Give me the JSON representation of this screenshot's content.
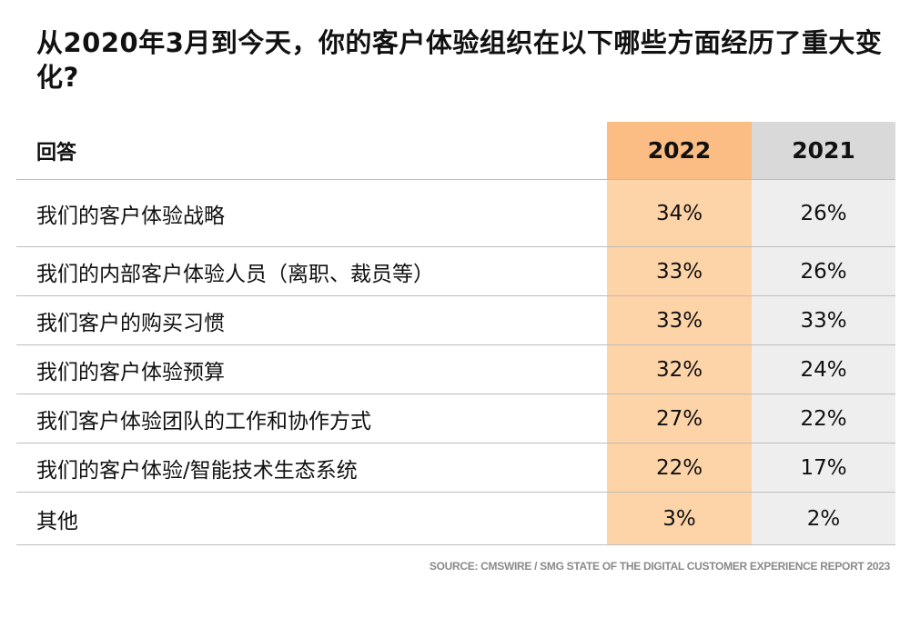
{
  "title": "从2020年3月到今天，你的客户体验组织在以下哪些方面经历了重大变化?",
  "colors": {
    "year_a_header": "#fbbd84",
    "year_a_cells": "#fdd3a8",
    "year_b_header": "#d9d9d9",
    "year_b_cells": "#eeeeee",
    "grid_lines": "#bdbdbd",
    "source_text": "#8a8a8a"
  },
  "chart_data": {
    "type": "table",
    "title": "从2020年3月到今天，你的客户体验组织在以下哪些方面经历了重大变化?",
    "columns": [
      "回答",
      "2022",
      "2021"
    ],
    "rows": [
      {
        "label": "我们的客户体验战略",
        "values": [
          "34%",
          "26%"
        ]
      },
      {
        "label": "我们的内部客户体验人员（离职、裁员等）",
        "values": [
          "33%",
          "26%"
        ]
      },
      {
        "label": "我们客户的购买习惯",
        "values": [
          "33%",
          "33%"
        ]
      },
      {
        "label": "我们的客户体验预算",
        "values": [
          "32%",
          "24%"
        ]
      },
      {
        "label": "我们客户体验团队的工作和协作方式",
        "values": [
          "27%",
          "22%"
        ]
      },
      {
        "label": "我们的客户体验/智能技术生态系统",
        "values": [
          "22%",
          "17%"
        ]
      },
      {
        "label": "其他",
        "values": [
          "3%",
          "2%"
        ]
      }
    ]
  },
  "source": "SOURCE: CMSWIRE / SMG STATE OF THE DIGITAL CUSTOMER EXPERIENCE REPORT 2023"
}
